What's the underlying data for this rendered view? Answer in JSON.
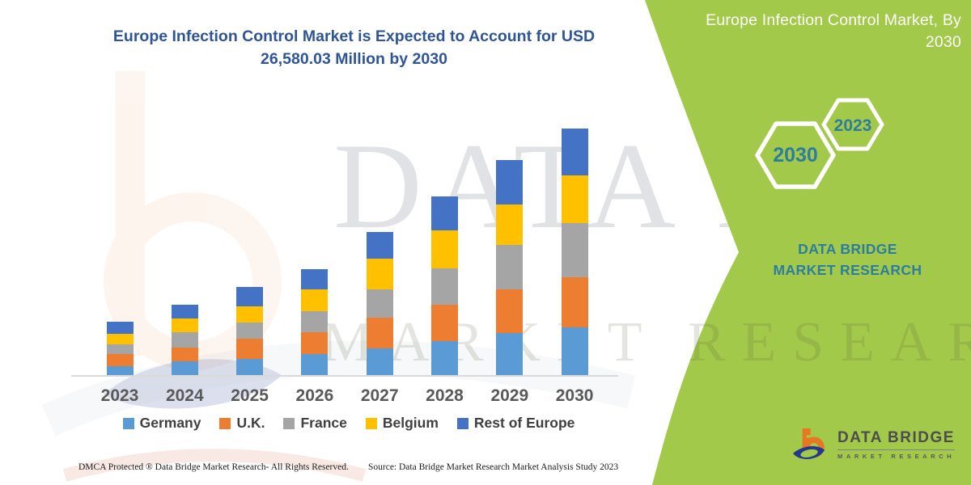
{
  "title": "Europe Infection Control Market is Expected to Account for USD 26,580.03 Million by 2030",
  "side_panel": {
    "heading": "Europe Infection Control Market, By 2030",
    "hex_large_year": "2030",
    "hex_small_year": "2023",
    "brand_caption": "DATA BRIDGE MARKET RESEARCH",
    "bg_color": "#A3C94A",
    "year_text_color": "#2E7D9E"
  },
  "watermarks": {
    "row1": "DATA BRIDGE",
    "row2": "MARKET RESEARCH"
  },
  "chart_data": {
    "type": "bar",
    "stacked": true,
    "units": "USD Million",
    "values_estimated": true,
    "anchor": "2030 stacked total equals 26,580.03 USD Million (stated in title); no y-axis shown",
    "title": "Europe Infection Control Market is Expected to Account for USD 26,580.03 Million by 2030",
    "xlabel": "",
    "ylabel": "",
    "ylim": [
      0,
      28000
    ],
    "grid": false,
    "legend_position": "bottom",
    "categories": [
      "2023",
      "2024",
      "2025",
      "2026",
      "2027",
      "2028",
      "2029",
      "2030"
    ],
    "series": [
      {
        "name": "Germany",
        "color": "#5B9BD5",
        "values": [
          1040,
          1560,
          1820,
          2350,
          2950,
          3730,
          4600,
          5210
        ]
      },
      {
        "name": "U.K.",
        "color": "#ED7D31",
        "values": [
          1300,
          1480,
          2150,
          2350,
          3300,
          3910,
          4690,
          5390
        ]
      },
      {
        "name": "France",
        "color": "#A5A5A5",
        "values": [
          1040,
          1650,
          1740,
          2260,
          3040,
          3910,
          4780,
          5820
        ]
      },
      {
        "name": "Belgium",
        "color": "#FFC000",
        "values": [
          1130,
          1480,
          1740,
          2350,
          3300,
          4080,
          4340,
          5120
        ]
      },
      {
        "name": "Rest of Europe",
        "color": "#4472C4",
        "values": [
          1300,
          1480,
          2080,
          2170,
          2870,
          3650,
          4780,
          5040
        ]
      }
    ],
    "totals": [
      5810,
      7650,
      9530,
      11480,
      15460,
      19280,
      23190,
      26580
    ]
  },
  "footer": {
    "left": "DMCA Protected ® Data Bridge Market Research-  All Rights Reserved.",
    "right": "Source: Data Bridge Market Research  Market Analysis Study 2023"
  },
  "brand_logo": {
    "name": "DATA BRIDGE",
    "subtitle": "MARKET RESEARCH",
    "orange": "#E87722",
    "blue": "#24388E"
  }
}
